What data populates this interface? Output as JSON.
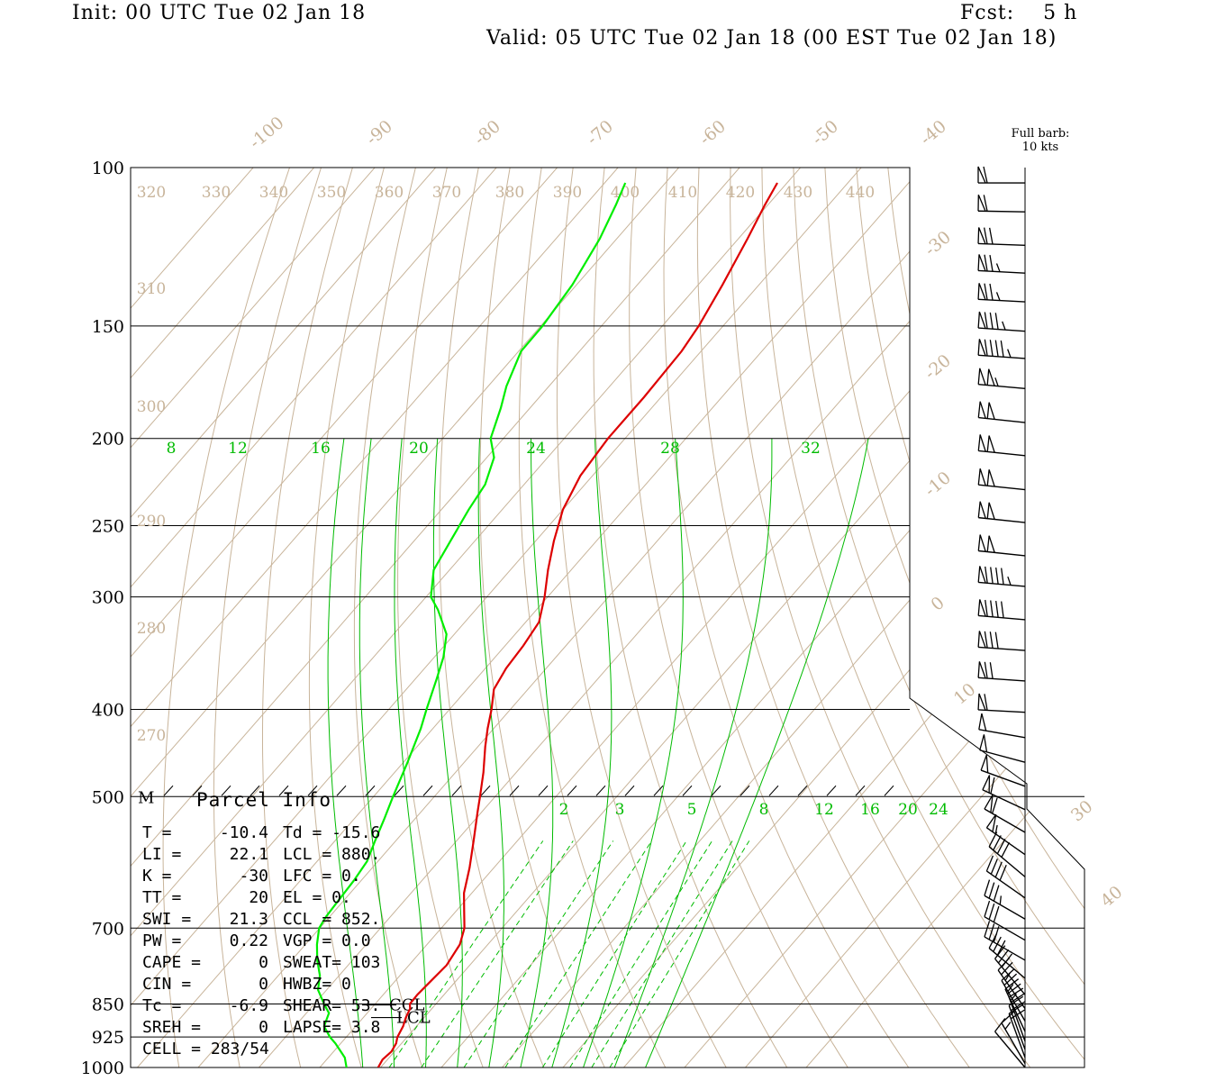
{
  "header": {
    "init": "Init: 00 UTC Tue 02 Jan 18",
    "fcst": "Fcst:    5 h",
    "valid": "Valid: 05 UTC Tue 02 Jan 18 (00 EST Tue 02 Jan 18)"
  },
  "barb_legend": {
    "line1": "Full barb:",
    "line2": "10 kts"
  },
  "colors": {
    "temperature": "#dd0000",
    "dewpoint": "#00ee00",
    "mixing_ratio": "#00bb00",
    "background_lines": "#c8b49a",
    "grid": "#000000"
  },
  "chart_data": {
    "type": "line",
    "chart_kind": "skew-T log-p sounding",
    "y_scale": "log",
    "pressure_levels": [
      "100",
      "150",
      "200",
      "250",
      "300",
      "400",
      "500",
      "700",
      "850",
      "925",
      "1000"
    ],
    "pressure_values": [
      100,
      150,
      200,
      250,
      300,
      400,
      500,
      700,
      850,
      925,
      1000
    ],
    "ylim": [
      1000,
      100
    ],
    "isotherm_labels": [
      "-100",
      "-90",
      "-80",
      "-70",
      "-60",
      "-50",
      "-40",
      "-30",
      "-20",
      "-10",
      "0",
      "10",
      "30",
      "40"
    ],
    "theta_labels": [
      "320",
      "330",
      "340",
      "350",
      "360",
      "370",
      "380",
      "390",
      "400",
      "410",
      "420",
      "430",
      "440",
      "310",
      "300",
      "290",
      "280",
      "270"
    ],
    "mixing_ratio_labels_upper": [
      "8",
      "12",
      "16",
      "20",
      "24",
      "28",
      "32"
    ],
    "mixing_ratio_labels_lower": [
      "2",
      "3",
      "5",
      "8",
      "12",
      "16",
      "20",
      "24"
    ],
    "series": [
      {
        "key": "temperature",
        "points": [
          [
            1000,
            -10.4
          ],
          [
            980,
            -10.8
          ],
          [
            960,
            -10.5
          ],
          [
            940,
            -10.9
          ],
          [
            925,
            -11.6
          ],
          [
            900,
            -12.2
          ],
          [
            880,
            -13.0
          ],
          [
            860,
            -13.6
          ],
          [
            850,
            -14.3
          ],
          [
            830,
            -14.4
          ],
          [
            800,
            -14.1
          ],
          [
            770,
            -13.8
          ],
          [
            730,
            -14.6
          ],
          [
            700,
            -16.2
          ],
          [
            670,
            -18.7
          ],
          [
            640,
            -21.3
          ],
          [
            600,
            -24.0
          ],
          [
            560,
            -27.2
          ],
          [
            520,
            -30.7
          ],
          [
            500,
            -32.5
          ],
          [
            470,
            -35.4
          ],
          [
            440,
            -38.8
          ],
          [
            420,
            -41.0
          ],
          [
            400,
            -43.1
          ],
          [
            380,
            -45.6
          ],
          [
            360,
            -46.6
          ],
          [
            340,
            -47.0
          ],
          [
            320,
            -47.8
          ],
          [
            300,
            -50.5
          ],
          [
            280,
            -53.8
          ],
          [
            260,
            -57.0
          ],
          [
            240,
            -60.0
          ],
          [
            220,
            -62.0
          ],
          [
            200,
            -62.8
          ],
          [
            180,
            -62.8
          ],
          [
            160,
            -63.2
          ],
          [
            150,
            -64.0
          ],
          [
            135,
            -66.0
          ],
          [
            120,
            -68.5
          ],
          [
            110,
            -70.5
          ],
          [
            104,
            -71.6
          ]
        ]
      },
      {
        "key": "dewpoint",
        "points": [
          [
            1000,
            -15.6
          ],
          [
            975,
            -17.3
          ],
          [
            940,
            -20.9
          ],
          [
            925,
            -22.7
          ],
          [
            900,
            -25.2
          ],
          [
            870,
            -26.3
          ],
          [
            850,
            -28.4
          ],
          [
            820,
            -31.4
          ],
          [
            790,
            -33.2
          ],
          [
            760,
            -35.8
          ],
          [
            730,
            -38.1
          ],
          [
            700,
            -40.1
          ],
          [
            680,
            -40.6
          ],
          [
            650,
            -40.9
          ],
          [
            620,
            -41.2
          ],
          [
            590,
            -41.8
          ],
          [
            560,
            -43.4
          ],
          [
            530,
            -45.0
          ],
          [
            500,
            -46.8
          ],
          [
            460,
            -49.2
          ],
          [
            420,
            -52.0
          ],
          [
            400,
            -53.8
          ],
          [
            370,
            -56.5
          ],
          [
            350,
            -58.5
          ],
          [
            330,
            -61.3
          ],
          [
            310,
            -66.2
          ],
          [
            300,
            -69.2
          ],
          [
            280,
            -72.6
          ],
          [
            260,
            -74.0
          ],
          [
            240,
            -75.5
          ],
          [
            225,
            -76.4
          ],
          [
            210,
            -78.8
          ],
          [
            200,
            -82.1
          ],
          [
            185,
            -84.8
          ],
          [
            175,
            -87.0
          ],
          [
            160,
            -89.6
          ],
          [
            150,
            -89.7
          ],
          [
            135,
            -90.7
          ],
          [
            120,
            -92.8
          ],
          [
            110,
            -95.0
          ],
          [
            104,
            -96.6
          ]
        ]
      }
    ],
    "wind_barbs": [
      {
        "p": 104,
        "speed_kt": 60,
        "dir": 270
      },
      {
        "p": 112,
        "speed_kt": 60,
        "dir": 271
      },
      {
        "p": 122,
        "speed_kt": 70,
        "dir": 272
      },
      {
        "p": 131,
        "speed_kt": 75,
        "dir": 273
      },
      {
        "p": 141,
        "speed_kt": 75,
        "dir": 273
      },
      {
        "p": 152,
        "speed_kt": 85,
        "dir": 274
      },
      {
        "p": 163,
        "speed_kt": 95,
        "dir": 274
      },
      {
        "p": 176,
        "speed_kt": 105,
        "dir": 275
      },
      {
        "p": 192,
        "speed_kt": 100,
        "dir": 276
      },
      {
        "p": 209,
        "speed_kt": 100,
        "dir": 276
      },
      {
        "p": 228,
        "speed_kt": 100,
        "dir": 276
      },
      {
        "p": 248,
        "speed_kt": 100,
        "dir": 276
      },
      {
        "p": 270,
        "speed_kt": 100,
        "dir": 276
      },
      {
        "p": 292,
        "speed_kt": 95,
        "dir": 275
      },
      {
        "p": 318,
        "speed_kt": 90,
        "dir": 275
      },
      {
        "p": 344,
        "speed_kt": 80,
        "dir": 274
      },
      {
        "p": 372,
        "speed_kt": 70,
        "dir": 274
      },
      {
        "p": 403,
        "speed_kt": 60,
        "dir": 273
      },
      {
        "p": 430,
        "speed_kt": 50,
        "dir": 280
      },
      {
        "p": 458,
        "speed_kt": 50,
        "dir": 285
      },
      {
        "p": 487,
        "speed_kt": 50,
        "dir": 290
      },
      {
        "p": 517,
        "speed_kt": 60,
        "dir": 295
      },
      {
        "p": 548,
        "speed_kt": 60,
        "dir": 300
      },
      {
        "p": 580,
        "speed_kt": 55,
        "dir": 305
      },
      {
        "p": 614,
        "speed_kt": 40,
        "dir": 310
      },
      {
        "p": 648,
        "speed_kt": 40,
        "dir": 305
      },
      {
        "p": 684,
        "speed_kt": 35,
        "dir": 300
      },
      {
        "p": 722,
        "speed_kt": 30,
        "dir": 300
      },
      {
        "p": 760,
        "speed_kt": 30,
        "dir": 300
      },
      {
        "p": 796,
        "speed_kt": 30,
        "dir": 310
      },
      {
        "p": 830,
        "speed_kt": 30,
        "dir": 320
      },
      {
        "p": 860,
        "speed_kt": 25,
        "dir": 325
      },
      {
        "p": 888,
        "speed_kt": 25,
        "dir": 330
      },
      {
        "p": 912,
        "speed_kt": 25,
        "dir": 335
      },
      {
        "p": 935,
        "speed_kt": 20,
        "dir": 340
      },
      {
        "p": 955,
        "speed_kt": 20,
        "dir": 340
      },
      {
        "p": 975,
        "speed_kt": 20,
        "dir": 340
      },
      {
        "p": 990,
        "speed_kt": 15,
        "dir": 330
      },
      {
        "p": 1000,
        "speed_kt": 10,
        "dir": 320
      }
    ],
    "markers": {
      "m_label": "M",
      "ccl": "CCL",
      "lcl": "LCL"
    }
  },
  "parcel_info": {
    "title": "Parcel Info",
    "rows": [
      [
        "T  =",
        "-10.4",
        "Td = -15.6"
      ],
      [
        "LI =",
        "22.1",
        "LCL =  880."
      ],
      [
        "K  =",
        "-30",
        "LFC =    0."
      ],
      [
        "TT =",
        "20",
        "EL  =    0."
      ],
      [
        "SWI =",
        "21.3",
        "CCL =  852."
      ],
      [
        "PW =",
        "0.22",
        "VGP =  0.0"
      ],
      [
        "CAPE =",
        "0",
        "SWEAT=  103"
      ],
      [
        "CIN =",
        "0",
        "HWBZ=    0"
      ],
      [
        "Tc =",
        "-6.9",
        "SHEAR=  53."
      ],
      [
        "SREH =",
        "0",
        "LAPSE=  3.8"
      ],
      [
        "CELL = 283/54",
        "",
        ""
      ]
    ]
  }
}
